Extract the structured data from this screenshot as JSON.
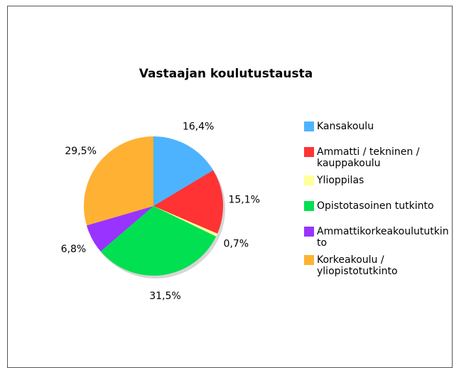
{
  "chart_data": {
    "type": "pie",
    "title": "Vastaajan koulutustausta",
    "categories": [
      "Kansakoulu",
      "Ammatti / tekninen / kauppakoulu",
      "Ylioppilas",
      "Opistotasoinen tutkinto",
      "Ammattikorkeakoulututkinto",
      "Korkeakoulu / yliopistotutkinto"
    ],
    "values": [
      16.4,
      15.1,
      0.7,
      31.5,
      6.8,
      29.5
    ],
    "value_labels": [
      "16,4%",
      "15,1%",
      "0,7%",
      "31,5%",
      "6,8%",
      "29,5%"
    ],
    "colors": [
      "#4db3ff",
      "#ff3333",
      "#ffff99",
      "#00e050",
      "#9933ff",
      "#ffb133"
    ]
  }
}
